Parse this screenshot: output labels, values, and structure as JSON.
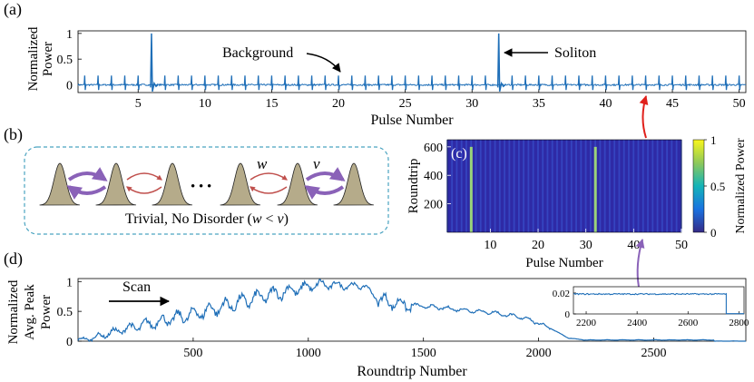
{
  "panel_labels": {
    "a": "(a)",
    "b": "(b)",
    "c": "(c)",
    "d": "(d)"
  },
  "colors": {
    "trace": "#1f6fb8",
    "arrow_purple": "#8a62b8",
    "arrow_red": "#c0504d",
    "pulse_fill": "#b5ab8a",
    "box_border": "#4aa3c0",
    "heat_bg": "#2e2aa6",
    "heat_line": "#9ad37a",
    "red_connector": "#e0201b",
    "purple_connector": "#8a62b8"
  },
  "chart_data": [
    {
      "id": "a",
      "type": "line",
      "ylabel_lines": [
        "Normalized",
        "Power"
      ],
      "xlabel": "Pulse Number",
      "x_ticks": [
        5,
        10,
        15,
        20,
        25,
        30,
        35,
        40,
        45,
        50
      ],
      "y_ticks": [
        "0",
        "0.5",
        "1"
      ],
      "xlim": [
        0.5,
        50.5
      ],
      "ylim": [
        -0.15,
        1.05
      ],
      "background_level": 0.18,
      "pulse_positions": [
        1,
        2,
        3,
        4,
        5,
        6,
        7,
        8,
        9,
        10,
        11,
        12,
        13,
        14,
        15,
        16,
        17,
        18,
        19,
        20,
        21,
        22,
        23,
        24,
        25,
        26,
        27,
        28,
        29,
        30,
        31,
        32,
        33,
        34,
        35,
        36,
        37,
        38,
        39,
        40,
        41,
        42,
        43,
        44,
        45,
        46,
        47,
        48,
        49,
        50
      ],
      "soliton_positions": [
        6,
        32
      ],
      "soliton_level": 1.0,
      "annotations": {
        "background": "Background",
        "soliton": "Soliton"
      }
    },
    {
      "id": "c",
      "type": "heatmap",
      "ylabel": "Roundtrip",
      "xlabel": "Pulse Number",
      "x_ticks": [
        10,
        20,
        30,
        40,
        50
      ],
      "y_ticks": [
        200,
        400,
        600
      ],
      "xlim": [
        1,
        50
      ],
      "ylim": [
        0,
        650
      ],
      "soliton_columns": [
        6,
        32
      ],
      "colorbar_label": "Normalized Power",
      "colorbar_ticks": [
        "0",
        "0.5",
        "1"
      ]
    },
    {
      "id": "d",
      "type": "line",
      "ylabel_lines": [
        "Normalized",
        "Avg. Peak",
        "Power"
      ],
      "xlabel": "Roundtrip Number",
      "x_ticks": [
        500,
        1000,
        1500,
        2000,
        2500
      ],
      "y_ticks": [
        "0",
        "0.5",
        "1"
      ],
      "xlim": [
        0,
        2900
      ],
      "ylim": [
        0,
        1.05
      ],
      "envelope": [
        [
          0,
          0.02
        ],
        [
          60,
          0.05
        ],
        [
          200,
          0.2
        ],
        [
          500,
          0.45
        ],
        [
          800,
          0.75
        ],
        [
          1050,
          0.95
        ],
        [
          1250,
          0.92
        ],
        [
          1300,
          0.7
        ],
        [
          1400,
          0.62
        ],
        [
          1600,
          0.55
        ],
        [
          1800,
          0.48
        ],
        [
          1950,
          0.38
        ],
        [
          2050,
          0.22
        ],
        [
          2130,
          0.05
        ],
        [
          2200,
          0.02
        ],
        [
          2760,
          0.02
        ],
        [
          2760,
          0.0
        ],
        [
          2900,
          0.0
        ]
      ],
      "scan_label": "Scan",
      "inset": {
        "x_ticks": [
          2200,
          2400,
          2600,
          2800
        ],
        "y_ticks": [
          "0",
          "0.02"
        ],
        "xlim": [
          2150,
          2820
        ],
        "ylim": [
          0,
          0.026
        ],
        "level": 0.019,
        "drop_at": 2750
      }
    }
  ],
  "schematic": {
    "dots": "• • •",
    "w_symbol": "w",
    "v_symbol": "v",
    "caption_text": "Trivial, No Disorder (",
    "caption_w": "w",
    "caption_lt": " < ",
    "caption_v": "v",
    "caption_close": ")"
  }
}
